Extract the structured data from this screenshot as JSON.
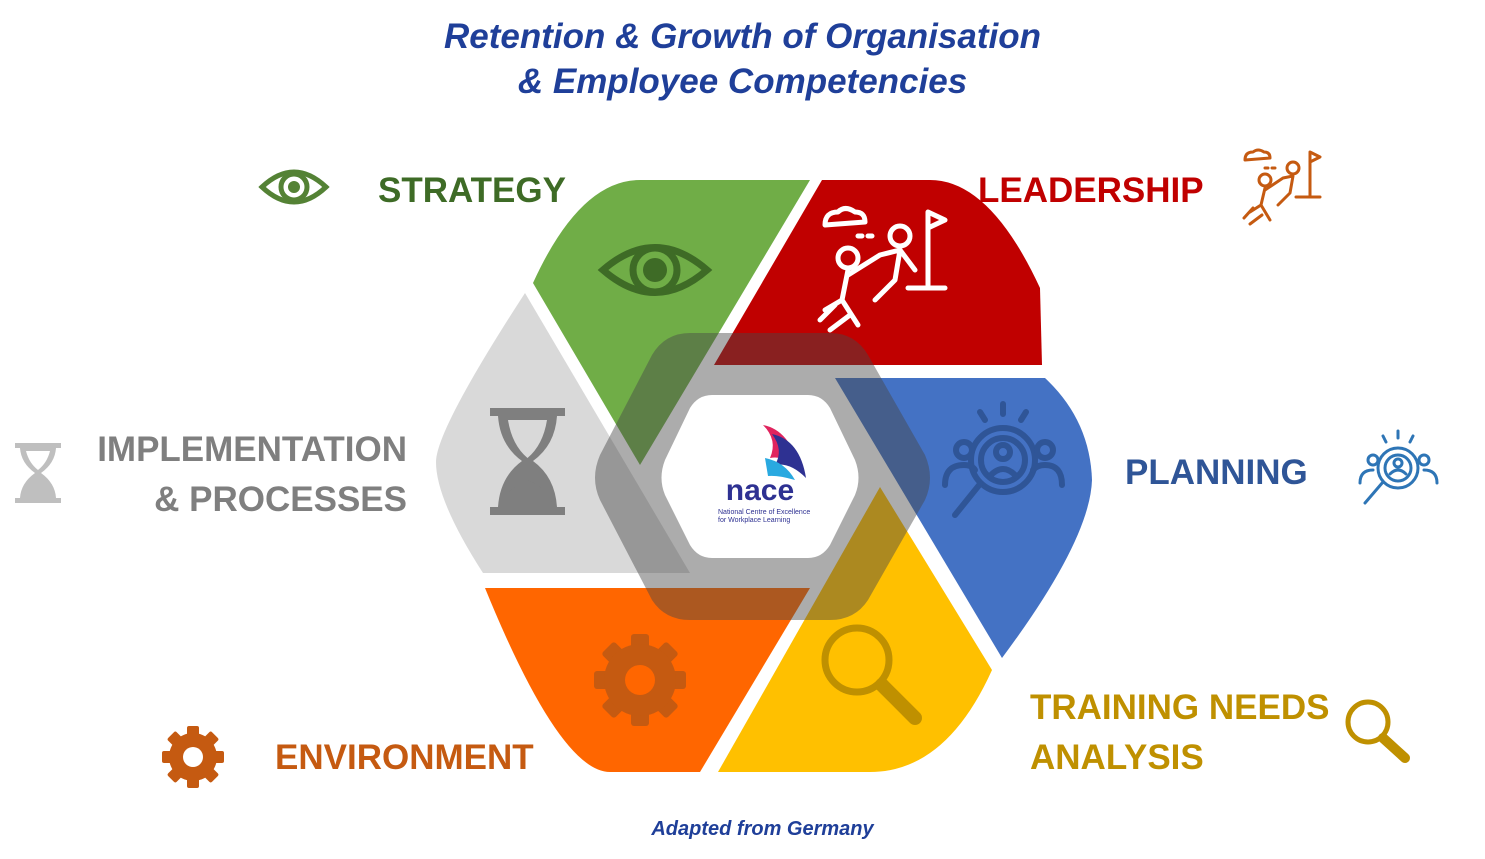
{
  "title": {
    "line1": "Retention & Growth of Organisation",
    "line2": "& Employee Competencies"
  },
  "segments": {
    "strategy": {
      "label": "STRATEGY",
      "color": "#70ad47",
      "text_color": "#3e6b26",
      "icon": "eye-icon"
    },
    "leadership": {
      "label": "LEADERSHIP",
      "color": "#c00000",
      "text_color": "#c00000",
      "icon": "climbing-people-icon"
    },
    "planning": {
      "label": "PLANNING",
      "color": "#4472c4",
      "text_color": "#2f5597",
      "icon": "search-people-icon"
    },
    "training": {
      "label_line1": "TRAINING NEEDS",
      "label_line2": "ANALYSIS",
      "color": "#ffc000",
      "text_color": "#bf9000",
      "icon": "magnifier-icon"
    },
    "environment": {
      "label": "ENVIRONMENT",
      "color": "#ff6600",
      "text_color": "#c55a11",
      "icon": "gear-icon"
    },
    "implementation": {
      "label_line1": "IMPLEMENTATION",
      "label_line2": "& PROCESSES",
      "color": "#d9d9d9",
      "text_color": "#7f7f7f",
      "icon": "hourglass-icon"
    }
  },
  "center": {
    "logo_text": "nace",
    "logo_subtitle_line1": "National Centre of Excellence",
    "logo_subtitle_line2": "for Workplace Learning"
  },
  "footer": "Adapted from Germany"
}
